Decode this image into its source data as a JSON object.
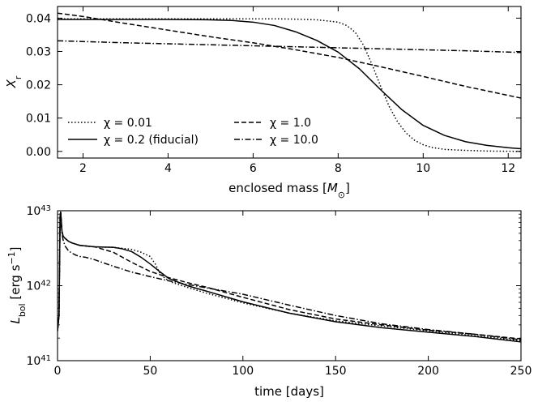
{
  "chart_data": [
    {
      "type": "line",
      "panel": "top",
      "xlabel": "enclosed mass [M⊙]",
      "xlabel_text": "enclosed mass [",
      "xlabel_symbol": "M",
      "xlabel_subscript": "⊙",
      "xlabel_close": "]",
      "ylabel": "X_r",
      "ylabel_main": "X",
      "ylabel_sub": "r",
      "xlim": [
        1.4,
        12.3
      ],
      "ylim": [
        -0.002,
        0.0435
      ],
      "xticks": [
        2,
        4,
        6,
        8,
        10,
        12
      ],
      "xtick_labels": [
        "2",
        "4",
        "6",
        "8",
        "10",
        "12"
      ],
      "yticks": [
        0.0,
        0.01,
        0.02,
        0.03,
        0.04
      ],
      "ytick_labels": [
        "0.00",
        "0.01",
        "0.02",
        "0.03",
        "0.04"
      ],
      "legend": "lower-left, two columns",
      "series": [
        {
          "name": "χ = 0.01",
          "style": "dotted",
          "x": [
            1.4,
            2,
            3,
            4,
            5,
            6,
            6.5,
            7,
            7.5,
            8,
            8.2,
            8.4,
            8.6,
            8.8,
            9.0,
            9.2,
            9.4,
            9.6,
            9.8,
            10.0,
            10.2,
            10.5,
            11,
            11.5,
            12.3
          ],
          "y": [
            0.0398,
            0.0398,
            0.0398,
            0.0398,
            0.0398,
            0.0398,
            0.0398,
            0.0397,
            0.0395,
            0.0388,
            0.0378,
            0.0358,
            0.0318,
            0.026,
            0.0195,
            0.0135,
            0.0088,
            0.0055,
            0.0033,
            0.002,
            0.0012,
            0.0006,
            0.0003,
            0.0001,
            0.0
          ]
        },
        {
          "name": "χ = 1.0",
          "style": "dashed",
          "x": [
            1.4,
            2,
            3,
            4,
            5,
            6,
            7,
            8,
            9,
            10,
            11,
            12.3
          ],
          "y": [
            0.0415,
            0.0405,
            0.0384,
            0.0364,
            0.0344,
            0.0326,
            0.0305,
            0.0282,
            0.0254,
            0.0225,
            0.0195,
            0.016
          ]
        },
        {
          "name": "χ = 0.2 (fiducial)",
          "style": "solid",
          "x": [
            1.4,
            2,
            3,
            4,
            5,
            5.5,
            6,
            6.5,
            7,
            7.5,
            8,
            8.5,
            9,
            9.5,
            10,
            10.5,
            11,
            11.5,
            12,
            12.3
          ],
          "y": [
            0.0396,
            0.0396,
            0.0396,
            0.0396,
            0.0395,
            0.0393,
            0.0388,
            0.0378,
            0.0359,
            0.0333,
            0.0298,
            0.0248,
            0.0185,
            0.0125,
            0.0078,
            0.0048,
            0.0029,
            0.0018,
            0.0011,
            0.0008
          ]
        },
        {
          "name": "χ = 10.0",
          "style": "dashdot",
          "x": [
            1.4,
            3,
            5,
            7,
            9,
            11,
            12.3
          ],
          "y": [
            0.0332,
            0.0326,
            0.032,
            0.0314,
            0.0308,
            0.0302,
            0.0297
          ]
        }
      ]
    },
    {
      "type": "line",
      "panel": "bottom",
      "xlabel": "time [days]",
      "ylabel": "L_bol [erg s^-1]",
      "ylabel_main": "L",
      "ylabel_sub": "bol",
      "ylabel_unit": " [erg s",
      "ylabel_sup": "−1",
      "ylabel_close": "]",
      "yscale": "log",
      "xlim": [
        0,
        250
      ],
      "ylim": [
        1e+41,
        1e+43
      ],
      "xticks": [
        0,
        50,
        100,
        150,
        200,
        250
      ],
      "xtick_labels": [
        "0",
        "50",
        "100",
        "150",
        "200",
        "250"
      ],
      "yticks": [
        1e+41,
        1e+42,
        1e+43
      ],
      "ytick_base": "10",
      "ytick_exponents": [
        "41",
        "42",
        "43"
      ],
      "series": [
        {
          "name": "χ = 0.01",
          "style": "dotted",
          "x": [
            0,
            0.8,
            1.4,
            1.7,
            2.0,
            2.4,
            3,
            4,
            6,
            8,
            12,
            20,
            30,
            40,
            45,
            50,
            53,
            55,
            58,
            62,
            70,
            80,
            100,
            125,
            150,
            175,
            200,
            225,
            250
          ],
          "y": [
            2.5e+41,
            4e+41,
            8.5e+42,
            9.6e+42,
            7.5e+42,
            5.3e+42,
            4.6e+42,
            4.3e+42,
            3.9e+42,
            3.7e+42,
            3.45e+42,
            3.3e+42,
            3.25e+42,
            3.05e+42,
            2.8e+42,
            2.45e+42,
            1.9e+42,
            1.5e+42,
            1.25e+42,
            1.1e+42,
            9.5e+41,
            8e+41,
            5.9e+41,
            4.3e+41,
            3.4e+41,
            2.9e+41,
            2.5e+41,
            2.15e+41,
            1.85e+41
          ]
        },
        {
          "name": "χ = 1.0",
          "style": "dashed",
          "x": [
            0,
            0.8,
            1.4,
            1.7,
            2.0,
            2.4,
            3,
            4,
            6,
            8,
            12,
            20,
            30,
            40,
            50,
            60,
            70,
            80,
            100,
            125,
            150,
            175,
            200,
            225,
            250
          ],
          "y": [
            2.5e+41,
            4e+41,
            8.5e+42,
            9.6e+42,
            7.5e+42,
            5.3e+42,
            4.6e+42,
            4.3e+42,
            3.9e+42,
            3.7e+42,
            3.45e+42,
            3.3e+42,
            2.8e+42,
            2.05e+42,
            1.55e+42,
            1.28e+42,
            1.1e+42,
            9.6e+41,
            7e+41,
            4.8e+41,
            3.6e+41,
            3e+41,
            2.55e+41,
            2.25e+41,
            1.95e+41
          ]
        },
        {
          "name": "χ = 0.2 (fiducial)",
          "style": "solid",
          "x": [
            0,
            0.8,
            1.4,
            1.7,
            2.0,
            2.4,
            3,
            4,
            6,
            8,
            12,
            20,
            30,
            35,
            40,
            45,
            50,
            55,
            60,
            70,
            80,
            100,
            125,
            150,
            175,
            200,
            225,
            250
          ],
          "y": [
            2.5e+41,
            4e+41,
            8.5e+42,
            9.6e+42,
            7.5e+42,
            5.3e+42,
            4.6e+42,
            4.3e+42,
            3.9e+42,
            3.7e+42,
            3.45e+42,
            3.3e+42,
            3.25e+42,
            3.1e+42,
            2.85e+42,
            2.4e+42,
            1.95e+42,
            1.55e+42,
            1.25e+42,
            1e+42,
            8.5e+41,
            6.1e+41,
            4.3e+41,
            3.3e+41,
            2.75e+41,
            2.4e+41,
            2.1e+41,
            1.78e+41
          ]
        },
        {
          "name": "χ = 10.0",
          "style": "dashdot",
          "x": [
            0,
            0.8,
            1.4,
            1.7,
            2.0,
            2.4,
            3,
            4,
            6,
            8,
            10,
            12,
            15,
            20,
            30,
            40,
            50,
            60,
            70,
            80,
            100,
            125,
            150,
            175,
            200,
            225,
            250
          ],
          "y": [
            2.5e+41,
            4e+41,
            8.5e+42,
            9.6e+42,
            7.2e+42,
            5e+42,
            4.1e+42,
            3.4e+42,
            2.9e+42,
            2.7e+42,
            2.55e+42,
            2.45e+42,
            2.4e+42,
            2.22e+42,
            1.82e+42,
            1.52e+42,
            1.32e+42,
            1.16e+42,
            1.04e+42,
            9.4e+41,
            7.7e+41,
            5.5e+41,
            4e+41,
            3.1e+41,
            2.6e+41,
            2.25e+41,
            1.9e+41
          ]
        }
      ]
    }
  ]
}
